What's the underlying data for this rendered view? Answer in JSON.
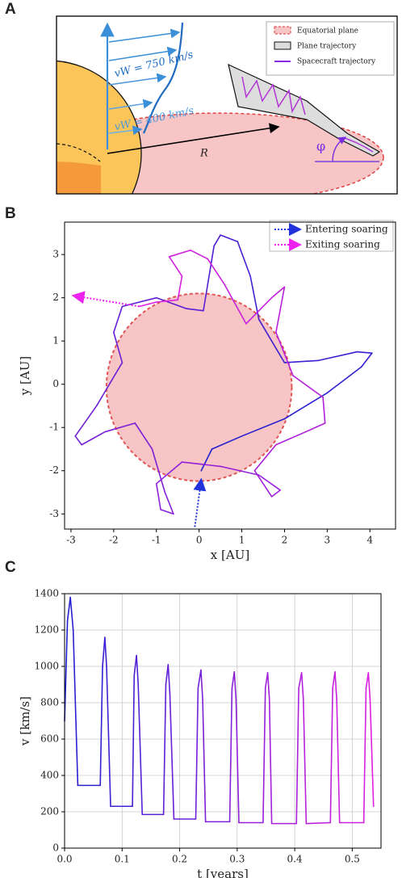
{
  "diagram": {
    "panel_label": "A",
    "wind_fast": "vW = 750 km/s",
    "wind_slow": "vW = 400 km/s",
    "radius_label": "R",
    "angle_label": "φ",
    "legend": [
      "Equatorial plane",
      "Plane trajectory",
      "Spacecraft trajectory"
    ]
  },
  "chart_data": [
    {
      "type": "trajectory",
      "panel_label": "B",
      "xlabel": "x [AU]",
      "ylabel": "y [AU]",
      "xlim": [
        -3.15,
        4.6
      ],
      "ylim": [
        -3.35,
        3.75
      ],
      "xticks": [
        -3,
        -2,
        -1,
        0,
        1,
        2,
        3,
        4
      ],
      "yticks": [
        -3,
        -2,
        -1,
        0,
        1,
        2,
        3
      ],
      "circle": {
        "center": [
          0,
          -0.07
        ],
        "radius": 2.17,
        "fill": "#f7c5c5",
        "color": "#e05555"
      },
      "series": [
        {
          "colors": [
            "#2020d0",
            "#e020e0"
          ],
          "x": [
            0.05,
            0.3,
            1.0,
            2.0,
            3.0,
            3.8,
            4.05,
            3.7,
            2.8,
            2.0,
            1.4,
            1.2,
            0.9,
            0.5,
            0.35,
            0.2,
            0.1,
            -0.3,
            -1.0,
            -1.8,
            -2.0,
            -1.8,
            -2.4,
            -2.9,
            -2.75,
            -2.2,
            -1.5,
            -1.1,
            -0.8,
            -0.6,
            -0.9,
            -1.0,
            -0.4,
            0.5,
            1.4,
            1.9,
            1.7,
            1.3,
            1.8,
            2.5,
            2.95,
            2.9,
            2.2,
            1.8,
            2.0,
            1.7,
            1.1,
            0.6,
            0.2,
            -0.2,
            -0.7,
            -0.4,
            -0.5,
            -1.0,
            -1.4
          ],
          "y": [
            -2.0,
            -1.5,
            -1.2,
            -0.8,
            -0.2,
            0.4,
            0.72,
            0.75,
            0.55,
            0.5,
            1.5,
            2.5,
            3.3,
            3.45,
            3.2,
            2.3,
            1.7,
            1.75,
            2.0,
            1.8,
            1.2,
            0.5,
            -0.5,
            -1.2,
            -1.4,
            -1.1,
            -0.9,
            -1.5,
            -2.5,
            -3.0,
            -2.9,
            -2.3,
            -1.8,
            -1.9,
            -2.1,
            -2.45,
            -2.6,
            -2.0,
            -1.4,
            -1.1,
            -0.9,
            -0.3,
            0.2,
            1.2,
            2.25,
            2.0,
            1.4,
            2.3,
            2.9,
            3.1,
            2.95,
            2.5,
            1.95,
            1.9,
            1.8
          ]
        }
      ],
      "arrows": [
        {
          "name": "Entering soaring",
          "color": "#2233dd",
          "x": [
            -0.1,
            0.05
          ],
          "y": [
            -3.3,
            -2.2
          ]
        },
        {
          "name": "Exiting soaring",
          "color": "#ee22ee",
          "x": [
            -1.4,
            -2.95
          ],
          "y": [
            1.8,
            2.05
          ]
        }
      ]
    },
    {
      "type": "line",
      "panel_label": "C",
      "xlabel": "t [years]",
      "ylabel": "v [km/s]",
      "grid": true,
      "xlim": [
        0,
        0.55
      ],
      "ylim": [
        0,
        1400
      ],
      "xticks": [
        {
          "value": 0,
          "label": "0.0"
        },
        0.1,
        0.2,
        0.3,
        0.4,
        0.5
      ],
      "yticks": [
        0,
        200,
        400,
        600,
        800,
        1000,
        1200,
        1400
      ],
      "series": [
        {
          "colors": [
            "#2020d0",
            "#e020e0"
          ],
          "x": [
            0,
            0.005,
            0.01,
            0.015,
            0.023,
            0.062,
            0.066,
            0.07,
            0.073,
            0.08,
            0.118,
            0.121,
            0.125,
            0.128,
            0.135,
            0.172,
            0.176,
            0.18,
            0.183,
            0.19,
            0.228,
            0.232,
            0.237,
            0.24,
            0.245,
            0.287,
            0.291,
            0.295,
            0.298,
            0.303,
            0.345,
            0.349,
            0.353,
            0.356,
            0.36,
            0.403,
            0.407,
            0.412,
            0.415,
            0.42,
            0.462,
            0.466,
            0.47,
            0.473,
            0.478,
            0.52,
            0.524,
            0.528,
            0.531,
            0.537
          ],
          "y": [
            700,
            1250,
            1380,
            1200,
            345,
            345,
            1000,
            1160,
            1000,
            230,
            230,
            950,
            1060,
            900,
            185,
            185,
            900,
            1010,
            850,
            160,
            160,
            880,
            980,
            820,
            145,
            145,
            880,
            970,
            820,
            140,
            140,
            880,
            965,
            820,
            135,
            135,
            880,
            965,
            820,
            135,
            140,
            880,
            970,
            820,
            140,
            140,
            880,
            965,
            820,
            230
          ]
        }
      ]
    }
  ]
}
